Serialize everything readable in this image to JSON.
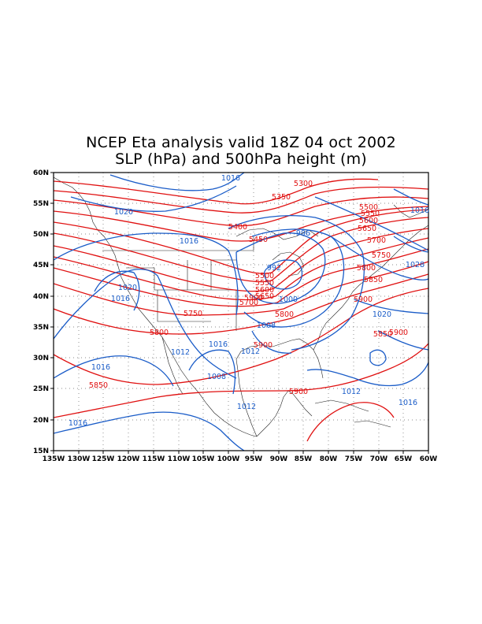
{
  "title": {
    "line1": "NCEP Eta analysis valid 18Z 04 oct 2002",
    "line2": "SLP (hPa) and 500hPa height (m)"
  },
  "axes": {
    "lat_labels": [
      "60N",
      "55N",
      "50N",
      "45N",
      "40N",
      "35N",
      "30N",
      "25N",
      "20N",
      "15N"
    ],
    "lon_labels": [
      "135W",
      "130W",
      "125W",
      "120W",
      "115W",
      "110W",
      "105W",
      "100W",
      "95W",
      "90W",
      "85W",
      "80W",
      "75W",
      "70W",
      "65W",
      "60W"
    ]
  },
  "colors": {
    "height": "#e01010",
    "slp": "#1a5cc8",
    "grid": "#555555"
  },
  "height_labels": [
    "5300",
    "5350",
    "5400",
    "5450",
    "5500",
    "5550",
    "5600",
    "5650",
    "5700",
    "5750",
    "5800",
    "5850",
    "5900",
    "5500",
    "5550",
    "5600",
    "5650",
    "5700",
    "5750",
    "5800",
    "5850",
    "5900",
    "5800",
    "5850",
    "5900",
    "5900",
    "5900",
    "5750",
    "5700"
  ],
  "slp_labels": [
    "1016",
    "1020",
    "1016",
    "1016",
    "1020",
    "1016",
    "996",
    "992",
    "1000",
    "1008",
    "1012",
    "1016",
    "1012",
    "1008",
    "1012",
    "1016",
    "1016",
    "1016",
    "1020",
    "1012",
    "1016",
    "1028"
  ]
}
